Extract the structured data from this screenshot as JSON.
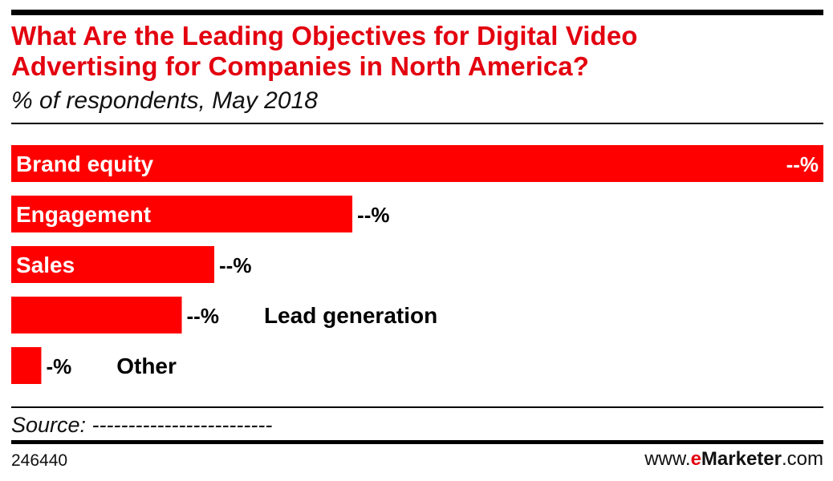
{
  "header": {
    "title_line1": "What Are the Leading Objectives for Digital Video",
    "title_line2": "Advertising for Companies in North America?",
    "subtitle": "% of respondents, May 2018"
  },
  "chart_data": {
    "type": "bar",
    "orientation": "horizontal",
    "categories": [
      "Brand equity",
      "Engagement",
      "Sales",
      "Lead generation",
      "Other"
    ],
    "value_labels": [
      "--%",
      "--%",
      "--%",
      "--%",
      "-%"
    ],
    "values": [
      100,
      42,
      25,
      21,
      3.7
    ],
    "bar_color": "#ff0000",
    "title": "What Are the Leading Objectives for Digital Video Advertising for Companies in North America?",
    "subtitle": "% of respondents, May 2018",
    "xlabel": "",
    "ylabel": "",
    "grid": false,
    "legend": "none"
  },
  "footer": {
    "source": "Source: -------------------------",
    "chart_id": "246440",
    "brand_prefix": "www.",
    "brand_e": "e",
    "brand_marketer": "Marketer",
    "brand_suffix": ".com"
  },
  "colors": {
    "accent": "#e3000f",
    "bar": "#ff0000",
    "text": "#000000"
  }
}
